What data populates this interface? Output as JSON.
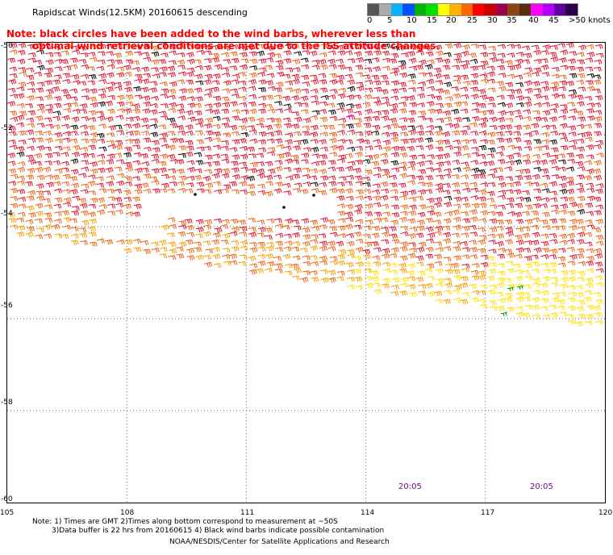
{
  "header": {
    "title": "Rapidscat Winds(12.5KM) 20160615 descending",
    "note_line1": "Note: black circles have been added to the wind barbs, wherever less than",
    "note_line2": "optimal wind retrieval conditions are met due to the ISS attitude changes."
  },
  "legend": {
    "unit": "knots",
    "labels": [
      "0",
      "5",
      "10",
      "15",
      "20",
      "25",
      "30",
      "35",
      "40",
      "45",
      ">50 knots"
    ],
    "colors": [
      "#555555",
      "#aaaaaa",
      "#00b4ff",
      "#0050ff",
      "#00b400",
      "#00e000",
      "#ffff00",
      "#ffb000",
      "#ff6600",
      "#ff0000",
      "#c80000",
      "#a0004a",
      "#8b4513",
      "#5a2d0c",
      "#ff00ff",
      "#b000ff",
      "#6000a0",
      "#2a004a"
    ]
  },
  "axes": {
    "lat_labels": [
      "-50",
      "-52",
      "-54",
      "-56",
      "-58",
      "-60"
    ],
    "lon_labels": [
      "105",
      "108",
      "111",
      "114",
      "117",
      "120"
    ]
  },
  "times": [
    "20:05",
    "20:05"
  ],
  "footer": {
    "notes_line1": "Note: 1) Times are GMT 2)Times along bottom correspond to measurement at ~50S",
    "notes_line2": "3)Data buffer is 22 hrs from 20160615 4) Black wind barbs indicate possible contamination",
    "credit": "NOAA/NESDIS/Center for Satellite Applications and Research"
  },
  "map_data": {
    "lat_range": [
      -60,
      -50
    ],
    "lon_range": [
      105,
      120
    ],
    "swath_colors": {
      "strong": "#e0102a",
      "mid": "#f06010",
      "orange": "#f5a000",
      "weak": "#ffe000",
      "contaminated": "#000000",
      "light": "#00a000",
      "magenta": "#ff00ff"
    }
  }
}
